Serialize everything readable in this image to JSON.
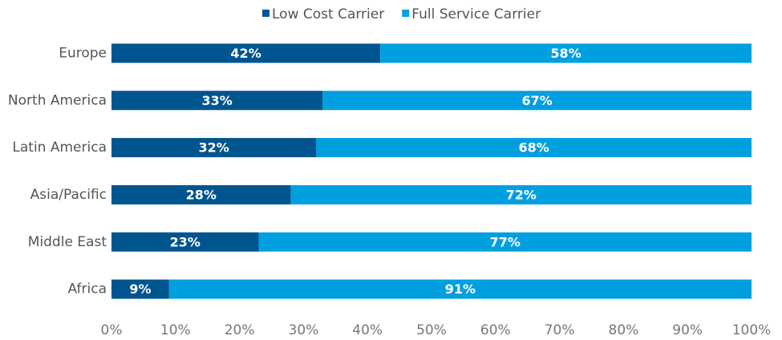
{
  "chart_data": {
    "type": "stacked-bar-horizontal",
    "categories": [
      "Europe",
      "North America",
      "Latin America",
      "Asia/Pacific",
      "Middle East",
      "Africa"
    ],
    "series": [
      {
        "name": "Low Cost Carrier",
        "color": "#00558f",
        "values": [
          42,
          33,
          32,
          28,
          23,
          9
        ],
        "value_labels": [
          "42%",
          "33%",
          "32%",
          "28%",
          "23%",
          "9%"
        ]
      },
      {
        "name": "Full Service Carrier",
        "color": "#009fe0",
        "values": [
          58,
          67,
          68,
          72,
          77,
          91
        ],
        "value_labels": [
          "58%",
          "67%",
          "68%",
          "72%",
          "77%",
          "91%"
        ]
      }
    ],
    "xlim": [
      0,
      100
    ],
    "xticks": [
      {
        "value": 0,
        "label": "0%"
      },
      {
        "value": 10,
        "label": "10%"
      },
      {
        "value": 20,
        "label": "20%"
      },
      {
        "value": 30,
        "label": "30%"
      },
      {
        "value": 40,
        "label": "40%"
      },
      {
        "value": 50,
        "label": "50%"
      },
      {
        "value": 60,
        "label": "60%"
      },
      {
        "value": 70,
        "label": "70%"
      },
      {
        "value": 80,
        "label": "80%"
      },
      {
        "value": 90,
        "label": "90%"
      },
      {
        "value": 100,
        "label": "100%"
      }
    ],
    "legend": "top",
    "grid": false
  }
}
